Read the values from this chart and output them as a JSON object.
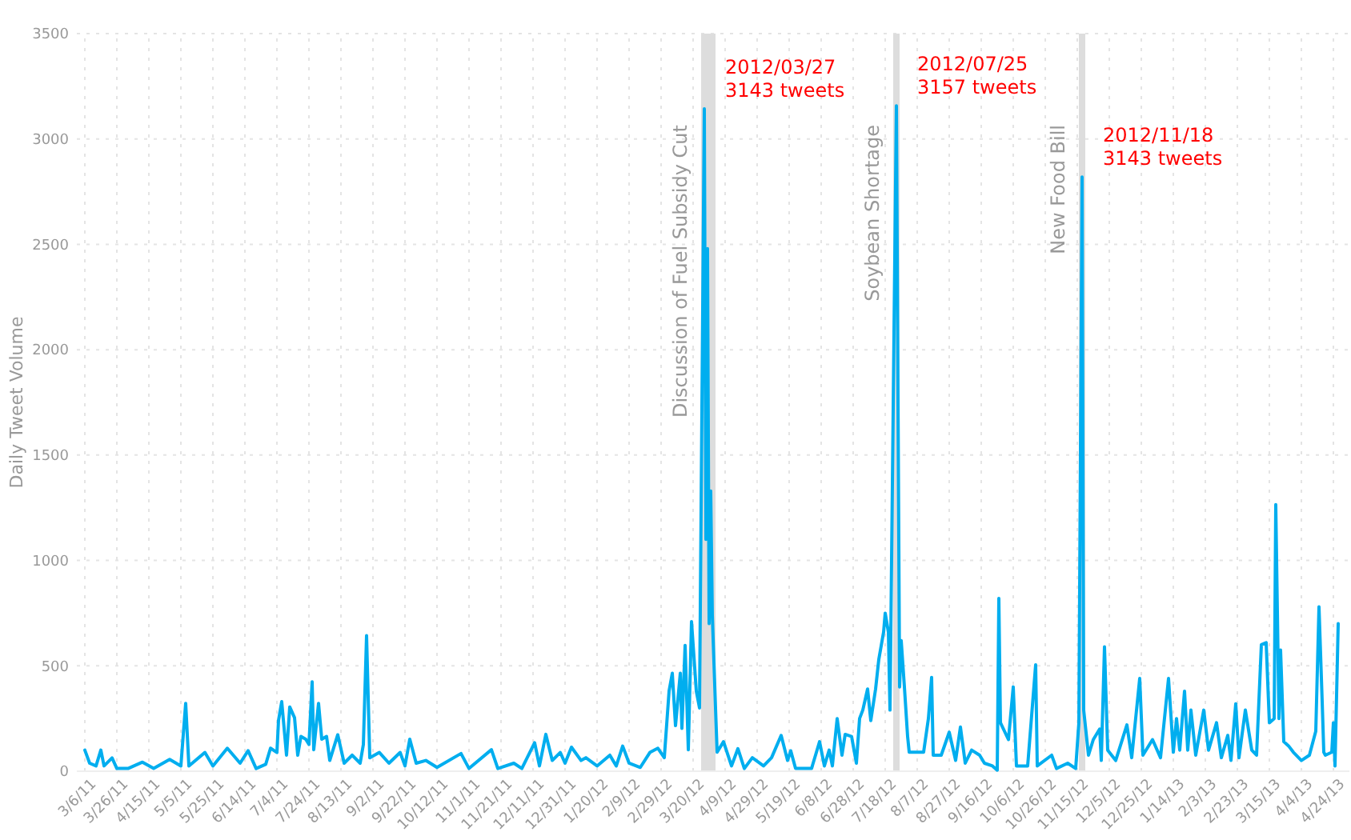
{
  "chart_data": {
    "type": "line",
    "ylabel": "Daily Tweet Volume",
    "xlim": [
      "2011-03-01",
      "2013-05-04"
    ],
    "ylim": [
      0,
      3500
    ],
    "yticks": [
      0,
      500,
      1000,
      1500,
      2000,
      2500,
      3000,
      3500
    ],
    "xticks": [
      {
        "value": "2011-03-06",
        "label": "3/6/11"
      },
      {
        "value": "2011-03-26",
        "label": "3/26/11"
      },
      {
        "value": "2011-04-15",
        "label": "4/15/11"
      },
      {
        "value": "2011-05-05",
        "label": "5/5/11"
      },
      {
        "value": "2011-05-25",
        "label": "5/25/11"
      },
      {
        "value": "2011-06-14",
        "label": "6/14/11"
      },
      {
        "value": "2011-07-04",
        "label": "7/4/11"
      },
      {
        "value": "2011-07-24",
        "label": "7/24/11"
      },
      {
        "value": "2011-08-13",
        "label": "8/13/11"
      },
      {
        "value": "2011-09-02",
        "label": "9/2/11"
      },
      {
        "value": "2011-09-22",
        "label": "9/22/11"
      },
      {
        "value": "2011-10-12",
        "label": "10/12/11"
      },
      {
        "value": "2011-11-01",
        "label": "11/1/11"
      },
      {
        "value": "2011-11-21",
        "label": "11/21/11"
      },
      {
        "value": "2011-12-11",
        "label": "12/11/11"
      },
      {
        "value": "2011-12-31",
        "label": "12/31/11"
      },
      {
        "value": "2012-01-20",
        "label": "1/20/12"
      },
      {
        "value": "2012-02-09",
        "label": "2/9/12"
      },
      {
        "value": "2012-02-29",
        "label": "2/29/12"
      },
      {
        "value": "2012-03-20",
        "label": "3/20/12"
      },
      {
        "value": "2012-04-09",
        "label": "4/9/12"
      },
      {
        "value": "2012-04-29",
        "label": "4/29/12"
      },
      {
        "value": "2012-05-19",
        "label": "5/19/12"
      },
      {
        "value": "2012-06-08",
        "label": "6/8/12"
      },
      {
        "value": "2012-06-28",
        "label": "6/28/12"
      },
      {
        "value": "2012-07-18",
        "label": "7/18/12"
      },
      {
        "value": "2012-08-07",
        "label": "8/7/12"
      },
      {
        "value": "2012-08-27",
        "label": "8/27/12"
      },
      {
        "value": "2012-09-16",
        "label": "9/16/12"
      },
      {
        "value": "2012-10-06",
        "label": "10/6/12"
      },
      {
        "value": "2012-10-26",
        "label": "10/26/12"
      },
      {
        "value": "2012-11-15",
        "label": "11/15/12"
      },
      {
        "value": "2012-12-05",
        "label": "12/5/12"
      },
      {
        "value": "2012-12-25",
        "label": "12/25/12"
      },
      {
        "value": "2013-01-14",
        "label": "1/14/13"
      },
      {
        "value": "2013-02-03",
        "label": "2/3/13"
      },
      {
        "value": "2013-02-23",
        "label": "2/23/13"
      },
      {
        "value": "2013-03-15",
        "label": "3/15/13"
      },
      {
        "value": "2013-04-04",
        "label": "4/4/13"
      },
      {
        "value": "2013-04-24",
        "label": "4/24/13"
      }
    ],
    "grid": true,
    "line_style": "solid",
    "bands": [
      {
        "axis": "x",
        "from": "2012-03-25",
        "to": "2012-04-03",
        "label": "Discussion of Fuel Subsidy Cut",
        "color": "#dddddd"
      },
      {
        "axis": "x",
        "from": "2012-07-23",
        "to": "2012-07-27",
        "label": "Soybean Shortage",
        "color": "#dddddd"
      },
      {
        "axis": "x",
        "from": "2012-11-16",
        "to": "2012-11-20",
        "label": "New Food Bill",
        "color": "#dddddd"
      }
    ],
    "annotations": [
      {
        "text": "2012/03/27\n3143 tweets",
        "x": "2012-03-27",
        "y": 3143
      },
      {
        "text": "2012/07/25\n3157 tweets",
        "x": "2012-07-25",
        "y": 3157
      },
      {
        "text": "2012/11/18\n3143 tweets",
        "x": "2012-11-18",
        "y": 2820
      }
    ],
    "series": [
      {
        "color": "#00aeef",
        "x": [
          "2011-03-06",
          "2011-03-09",
          "2011-03-13",
          "2011-03-16",
          "2011-03-18",
          "2011-03-23",
          "2011-03-26",
          "2011-04-02",
          "2011-04-11",
          "2011-04-18",
          "2011-04-28",
          "2011-05-05",
          "2011-05-08",
          "2011-05-10",
          "2011-05-20",
          "2011-05-25",
          "2011-06-03",
          "2011-06-11",
          "2011-06-16",
          "2011-06-21",
          "2011-06-27",
          "2011-06-30",
          "2011-07-04",
          "2011-07-05",
          "2011-07-07",
          "2011-07-10",
          "2011-07-12",
          "2011-07-15",
          "2011-07-17",
          "2011-07-19",
          "2011-07-22",
          "2011-07-24",
          "2011-07-26",
          "2011-07-27",
          "2011-07-30",
          "2011-08-01",
          "2011-08-04",
          "2011-08-06",
          "2011-08-11",
          "2011-08-15",
          "2011-08-20",
          "2011-08-25",
          "2011-08-27",
          "2011-08-29",
          "2011-08-31",
          "2011-09-06",
          "2011-09-12",
          "2011-09-19",
          "2011-09-22",
          "2011-09-25",
          "2011-09-29",
          "2011-10-05",
          "2011-10-12",
          "2011-10-27",
          "2011-11-01",
          "2011-11-15",
          "2011-11-19",
          "2011-11-29",
          "2011-12-04",
          "2011-12-12",
          "2011-12-15",
          "2011-12-19",
          "2011-12-23",
          "2011-12-28",
          "2011-12-31",
          "2012-01-04",
          "2012-01-10",
          "2012-01-13",
          "2012-01-20",
          "2012-01-28",
          "2012-02-01",
          "2012-02-05",
          "2012-02-09",
          "2012-02-16",
          "2012-02-22",
          "2012-02-27",
          "2012-03-02",
          "2012-03-05",
          "2012-03-07",
          "2012-03-09",
          "2012-03-12",
          "2012-03-13",
          "2012-03-15",
          "2012-03-17",
          "2012-03-19",
          "2012-03-22",
          "2012-03-24",
          "2012-03-27",
          "2012-03-28",
          "2012-03-29",
          "2012-03-30",
          "2012-03-31",
          "2012-04-01",
          "2012-04-03",
          "2012-04-04",
          "2012-04-08",
          "2012-04-13",
          "2012-04-17",
          "2012-04-21",
          "2012-04-26",
          "2012-05-03",
          "2012-05-08",
          "2012-05-14",
          "2012-05-18",
          "2012-05-20",
          "2012-05-23",
          "2012-06-02",
          "2012-06-07",
          "2012-06-10",
          "2012-06-13",
          "2012-06-15",
          "2012-06-18",
          "2012-06-21",
          "2012-06-23",
          "2012-06-27",
          "2012-06-30",
          "2012-07-02",
          "2012-07-04",
          "2012-07-07",
          "2012-07-09",
          "2012-07-12",
          "2012-07-14",
          "2012-07-17",
          "2012-07-18",
          "2012-07-20",
          "2012-07-21",
          "2012-07-25",
          "2012-07-27",
          "2012-07-28",
          "2012-07-30",
          "2012-08-01",
          "2012-08-02",
          "2012-08-11",
          "2012-08-14",
          "2012-08-16",
          "2012-08-17",
          "2012-08-22",
          "2012-08-27",
          "2012-08-31",
          "2012-09-03",
          "2012-09-06",
          "2012-09-10",
          "2012-09-15",
          "2012-09-18",
          "2012-09-23",
          "2012-09-26",
          "2012-09-27",
          "2012-09-28",
          "2012-10-03",
          "2012-10-06",
          "2012-10-08",
          "2012-10-15",
          "2012-10-20",
          "2012-10-21",
          "2012-10-30",
          "2012-11-02",
          "2012-11-09",
          "2012-11-14",
          "2012-11-16",
          "2012-11-18",
          "2012-11-19",
          "2012-11-22",
          "2012-11-25",
          "2012-11-29",
          "2012-11-30",
          "2012-12-02",
          "2012-12-04",
          "2012-12-09",
          "2012-12-16",
          "2012-12-19",
          "2012-12-24",
          "2012-12-26",
          "2013-01-01",
          "2013-01-06",
          "2013-01-11",
          "2013-01-14",
          "2013-01-16",
          "2013-01-18",
          "2013-01-21",
          "2013-01-23",
          "2013-01-25",
          "2013-01-28",
          "2013-02-02",
          "2013-02-05",
          "2013-02-10",
          "2013-02-13",
          "2013-02-17",
          "2013-02-19",
          "2013-02-22",
          "2013-02-24",
          "2013-02-28",
          "2013-03-04",
          "2013-03-07",
          "2013-03-10",
          "2013-03-13",
          "2013-03-15",
          "2013-03-18",
          "2013-03-19",
          "2013-03-21",
          "2013-03-22",
          "2013-03-24",
          "2013-03-27",
          "2013-03-30",
          "2013-04-04",
          "2013-04-09",
          "2013-04-13",
          "2013-04-15",
          "2013-04-17",
          "2013-04-18",
          "2013-04-19",
          "2013-04-23",
          "2013-04-24",
          "2013-04-25",
          "2013-04-27"
        ],
        "values": [
          100,
          38,
          25,
          100,
          25,
          63,
          13,
          13,
          43,
          13,
          56,
          25,
          322,
          25,
          89,
          25,
          109,
          38,
          97,
          13,
          33,
          109,
          89,
          241,
          330,
          76,
          305,
          254,
          76,
          165,
          152,
          127,
          424,
          102,
          322,
          152,
          165,
          51,
          173,
          38,
          76,
          38,
          127,
          643,
          64,
          89,
          38,
          89,
          25,
          152,
          38,
          51,
          18,
          84,
          13,
          102,
          13,
          38,
          13,
          135,
          25,
          175,
          51,
          89,
          38,
          114,
          51,
          64,
          25,
          76,
          25,
          119,
          38,
          18,
          89,
          109,
          64,
          381,
          465,
          216,
          465,
          203,
          597,
          102,
          710,
          380,
          300,
          3143,
          1100,
          2480,
          700,
          1330,
          740,
          300,
          90,
          140,
          25,
          107,
          13,
          64,
          25,
          64,
          170,
          51,
          97,
          13,
          13,
          140,
          25,
          100,
          25,
          250,
          76,
          175,
          165,
          38,
          250,
          290,
          390,
          240,
          390,
          530,
          660,
          750,
          660,
          290,
          3157,
          400,
          620,
          400,
          165,
          90,
          90,
          250,
          445,
          76,
          76,
          185,
          51,
          210,
          38,
          100,
          76,
          38,
          25,
          5,
          820,
          230,
          150,
          400,
          25,
          25,
          505,
          25,
          76,
          13,
          38,
          13,
          230,
          2820,
          290,
          76,
          150,
          200,
          51,
          590,
          100,
          51,
          220,
          64,
          440,
          76,
          150,
          64,
          440,
          90,
          250,
          100,
          380,
          100,
          290,
          76,
          290,
          100,
          230,
          64,
          170,
          51,
          320,
          64,
          290,
          100,
          76,
          600,
          610,
          230,
          250,
          1265,
          250,
          575,
          140,
          120,
          90,
          51,
          76,
          190,
          780,
          330,
          90,
          76,
          90,
          230,
          25,
          700
        ]
      }
    ]
  }
}
